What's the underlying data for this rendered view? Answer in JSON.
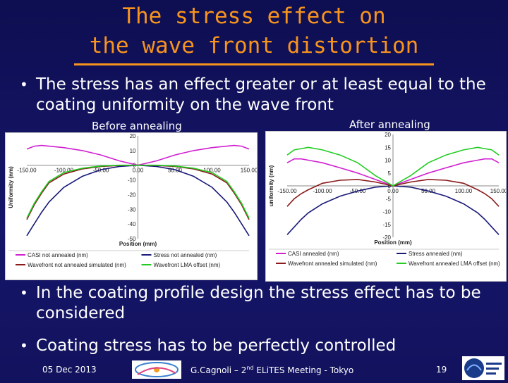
{
  "slide": {
    "title_line1": "The stress effect on",
    "title_line2": "the wave front distortion",
    "bullets": [
      "The stress has an effect greater or at least equal to the coating uniformity on the wave front",
      "In the coating profile design the stress effect has to be considered",
      "Coating stress has to be perfectly controlled"
    ],
    "captions": {
      "left": "Before annealing",
      "right": "After annealing"
    },
    "footer": {
      "date": "05 Dec 2013",
      "author_pre": "G.Cagnoli – 2",
      "author_sup": "nd",
      "author_post": " ELiTES Meeting - Tokyo",
      "page": "19"
    },
    "logos": [
      "lma-logo",
      "advanced-virgo-logo"
    ]
  },
  "chart_data": [
    {
      "type": "line",
      "xlabel": "Position (mm)",
      "ylabel": "Uniformity (nm)",
      "xlim": [
        -150,
        150
      ],
      "ylim": [
        -50,
        20
      ],
      "xticks": [
        "-150.00",
        "-100.00",
        "-50.00",
        "0.00",
        "50.00",
        "100.00",
        "150.00"
      ],
      "yticks": [
        "20",
        "10",
        "0",
        "-10",
        "-20",
        "-30",
        "-40",
        "-50"
      ],
      "grid": false,
      "legend_position": "bottom",
      "x": [
        -150,
        -140,
        -130,
        -120,
        -100,
        -75,
        -50,
        -25,
        0,
        25,
        50,
        75,
        100,
        120,
        130,
        140,
        150
      ],
      "series": [
        {
          "name": "CASI not annealed (nm)",
          "color": "#d020d0",
          "values": [
            11,
            13,
            13.5,
            13,
            12,
            10,
            7,
            3,
            0,
            3,
            7,
            10,
            12,
            13,
            13.5,
            13,
            11
          ]
        },
        {
          "name": "Stress not annealed (nm)",
          "color": "#1a1a7a",
          "values": [
            -48,
            -40,
            -32,
            -25,
            -15,
            -7.5,
            -3,
            -0.8,
            0,
            -0.8,
            -3,
            -7.5,
            -15,
            -25,
            -32,
            -40,
            -48
          ]
        },
        {
          "name": "Wavefront not annealed simulated (nm)",
          "color": "#8b1a1a",
          "values": [
            -37,
            -27,
            -19,
            -12,
            -6,
            -2.5,
            -0.8,
            -0.2,
            0,
            -0.2,
            -0.8,
            -2.5,
            -6,
            -12,
            -19,
            -27,
            -37
          ]
        },
        {
          "name": "Wavefront LMA offset (nm)",
          "color": "#22cc22",
          "values": [
            -36,
            -26,
            -18,
            -11,
            -5,
            -2,
            -0.5,
            0,
            0,
            0,
            -0.5,
            -2,
            -5,
            -11,
            -18,
            -26,
            -36
          ]
        }
      ]
    },
    {
      "type": "line",
      "xlabel": "Position (mm)",
      "ylabel": "uniformity (nm)",
      "xlim": [
        -150,
        150
      ],
      "ylim": [
        -20,
        20
      ],
      "xticks": [
        "-150.00",
        "-100.00",
        "-50.00",
        "0.00",
        "50.00",
        "100.00",
        "150.00"
      ],
      "yticks": [
        "20",
        "15",
        "10",
        "5",
        "0",
        "-5",
        "-10",
        "-15",
        "-20"
      ],
      "grid": false,
      "legend_position": "bottom",
      "x": [
        -150,
        -140,
        -130,
        -120,
        -100,
        -75,
        -50,
        -25,
        0,
        25,
        50,
        75,
        100,
        120,
        130,
        140,
        150
      ],
      "series": [
        {
          "name": "CASI annealed (nm)",
          "color": "#d020d0",
          "values": [
            9,
            10.5,
            10.5,
            10,
            9,
            7,
            5,
            2.5,
            0,
            2.5,
            5,
            7,
            9,
            10,
            10.5,
            10.5,
            9
          ]
        },
        {
          "name": "Stress annealed (nm)",
          "color": "#1a1a7a",
          "values": [
            -19,
            -16,
            -13,
            -10.5,
            -7,
            -4,
            -2,
            -0.5,
            0,
            -0.5,
            -2,
            -4,
            -7,
            -10.5,
            -13,
            -16,
            -19
          ]
        },
        {
          "name": "Wavefront annealed simulated (nm)",
          "color": "#8b1a1a",
          "values": [
            -8,
            -5,
            -3,
            -1.5,
            1,
            2.2,
            2.5,
            1.5,
            0,
            1.5,
            2.5,
            2.2,
            1,
            -1.5,
            -3,
            -5,
            -8
          ]
        },
        {
          "name": "Wavefront annealed LMA offset (nm)",
          "color": "#22cc22",
          "values": [
            12,
            14,
            14.5,
            15,
            14,
            12,
            9,
            4,
            0,
            4,
            9,
            12,
            14,
            15,
            14.5,
            14,
            12
          ]
        }
      ]
    }
  ]
}
